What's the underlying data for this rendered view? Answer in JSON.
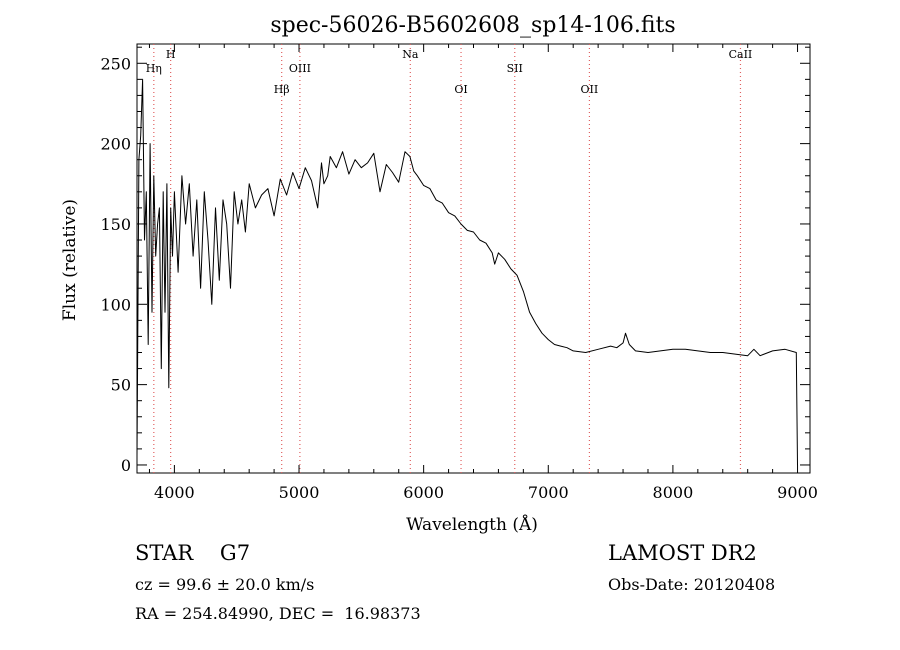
{
  "chart_data": {
    "type": "line",
    "title": "spec-56026-B5602608_sp14-106.fits",
    "xlabel": "Wavelength (Å)",
    "ylabel": "Flux (relative)",
    "xlim": [
      3700,
      9100
    ],
    "ylim": [
      -5,
      262
    ],
    "x_ticks": [
      4000,
      5000,
      6000,
      7000,
      8000,
      9000
    ],
    "y_ticks": [
      0,
      50,
      100,
      150,
      200,
      250
    ],
    "grid": false,
    "series": [
      {
        "x": [
          3700,
          3715,
          3730,
          3745,
          3760,
          3775,
          3790,
          3805,
          3820,
          3835,
          3850,
          3865,
          3880,
          3895,
          3910,
          3925,
          3940,
          3955,
          3970,
          3985,
          4000,
          4030,
          4060,
          4090,
          4120,
          4150,
          4180,
          4210,
          4240,
          4270,
          4300,
          4330,
          4360,
          4390,
          4420,
          4450,
          4480,
          4510,
          4540,
          4570,
          4600,
          4650,
          4700,
          4750,
          4800,
          4850,
          4900,
          4950,
          5000,
          5050,
          5100,
          5150,
          5180,
          5200,
          5230,
          5250,
          5300,
          5350,
          5400,
          5450,
          5500,
          5550,
          5600,
          5650,
          5700,
          5750,
          5800,
          5850,
          5890,
          5920,
          5950,
          6000,
          6050,
          6100,
          6150,
          6200,
          6250,
          6300,
          6350,
          6400,
          6450,
          6500,
          6550,
          6570,
          6600,
          6650,
          6700,
          6750,
          6800,
          6850,
          6900,
          6950,
          7000,
          7050,
          7100,
          7150,
          7200,
          7300,
          7400,
          7500,
          7550,
          7600,
          7620,
          7650,
          7700,
          7800,
          7900,
          8000,
          8100,
          8200,
          8300,
          8400,
          8500,
          8600,
          8650,
          8700,
          8800,
          8900,
          8990,
          9000
        ],
        "values": [
          5,
          190,
          205,
          240,
          140,
          170,
          75,
          200,
          95,
          180,
          130,
          150,
          160,
          60,
          170,
          95,
          175,
          48,
          160,
          130,
          170,
          120,
          180,
          150,
          175,
          130,
          165,
          110,
          170,
          140,
          100,
          160,
          115,
          165,
          150,
          110,
          170,
          150,
          165,
          145,
          175,
          160,
          168,
          172,
          155,
          178,
          168,
          182,
          172,
          185,
          177,
          160,
          188,
          175,
          180,
          192,
          185,
          195,
          181,
          190,
          185,
          188,
          194,
          170,
          187,
          182,
          176,
          195,
          192,
          183,
          180,
          174,
          172,
          165,
          163,
          157,
          155,
          150,
          146,
          145,
          140,
          138,
          132,
          125,
          132,
          128,
          122,
          118,
          108,
          95,
          88,
          82,
          78,
          75,
          74,
          73,
          71,
          70,
          72,
          74,
          73,
          76,
          82,
          75,
          71,
          70,
          71,
          72,
          72,
          71,
          70,
          70,
          69,
          68,
          72,
          68,
          71,
          72,
          70,
          0
        ]
      }
    ],
    "lines": [
      {
        "label": "Hη",
        "x": 3835
      },
      {
        "label": "H",
        "x": 3970
      },
      {
        "label": "Hβ",
        "x": 4861
      },
      {
        "label": "OIII",
        "x": 5007
      },
      {
        "label": "Na",
        "x": 5893
      },
      {
        "label": "OI",
        "x": 6300
      },
      {
        "label": "SII",
        "x": 6731
      },
      {
        "label": "OII",
        "x": 7330
      },
      {
        "label": "CaII",
        "x": 8542
      }
    ]
  },
  "info": {
    "object_type": "STAR    G7",
    "cz": "cz = 99.6 ± 20.0 km/s",
    "ra_dec": "RA = 254.84990, DEC =  16.98373",
    "survey": "LAMOST DR2",
    "obs_date": "Obs-Date: 20120408"
  },
  "colors": {
    "line_marker": "#e06060",
    "spectrum": "#000000"
  }
}
